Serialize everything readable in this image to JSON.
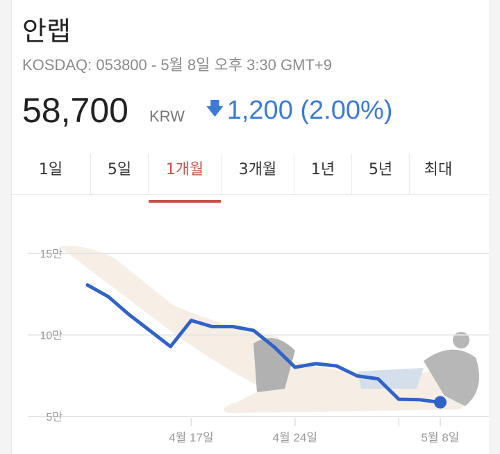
{
  "stock": {
    "name": "안랩",
    "subtitle": "KOSDAQ: 053800 - 5월 8일 오후 3:30 GMT+9",
    "price": "58,700",
    "currency": "KRW",
    "change_icon": "arrow-down",
    "change": "1,200 (2.00%)",
    "change_color": "#3a7bd5"
  },
  "tabs": [
    {
      "label": "1일"
    },
    {
      "label": "5일"
    },
    {
      "label": "1개월",
      "active": true
    },
    {
      "label": "3개월"
    },
    {
      "label": "1년"
    },
    {
      "label": "5년"
    },
    {
      "label": "최대"
    }
  ],
  "chart_data": {
    "type": "line",
    "x": [
      "4/10",
      "4/11",
      "4/12",
      "4/13",
      "4/16",
      "4/17",
      "4/18",
      "4/19",
      "4/20",
      "4/23",
      "4/24",
      "4/25",
      "4/26",
      "4/27",
      "4/30",
      "5/2",
      "5/3",
      "5/8"
    ],
    "values": [
      130600,
      123500,
      112500,
      102700,
      92900,
      108900,
      105100,
      105100,
      102800,
      92600,
      80200,
      82400,
      81000,
      74900,
      73100,
      60600,
      60300,
      58700
    ],
    "ylim": [
      50000,
      150000
    ],
    "yticks": [
      {
        "value": 150000,
        "label": "15만"
      },
      {
        "value": 100000,
        "label": "10만"
      },
      {
        "value": 50000,
        "label": "5만"
      }
    ],
    "xticks": [
      {
        "x": "4/17",
        "label": "4월 17일"
      },
      {
        "x": "4/24",
        "label": "4월 24일"
      },
      {
        "x": "5/2",
        "label": ""
      },
      {
        "x": "5/8",
        "label": "5월 8일"
      }
    ],
    "grid": true,
    "line_color": "#2f63c8"
  }
}
